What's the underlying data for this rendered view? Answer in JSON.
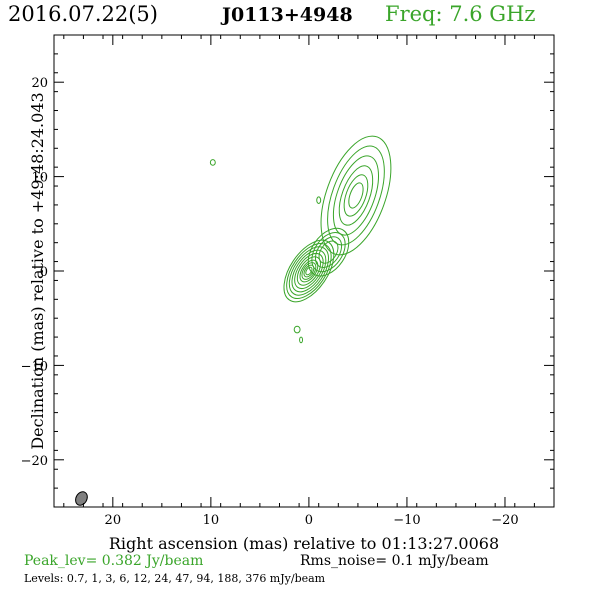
{
  "header": {
    "date": "2016.07.22(5)",
    "source": "J0113+4948",
    "freq": "Freq: 7.6 GHz"
  },
  "footer": {
    "peak": "Peak_lev=  0.382 Jy/beam",
    "rms": "Rms_noise=  0.1 mJy/beam",
    "levels": "Levels: 0.7,   1,   3,   6,  12,  24,  47,  94, 188, 376 mJy/beam"
  },
  "colors": {
    "contour": "#3aa52a",
    "beam": "#808080",
    "axis": "#000000"
  },
  "chart_data": {
    "type": "contour",
    "title": "",
    "xlabel": "Right ascension (mas) relative to 01:13:27.0068",
    "ylabel": "Declination (mas) relative to +49:48:24.043",
    "xlim": [
      26,
      -25
    ],
    "ylim": [
      -25,
      25
    ],
    "xticks": [
      20,
      10,
      0,
      -10,
      -20
    ],
    "xtick_labels": [
      "20",
      "10",
      "0",
      "−10",
      "−20"
    ],
    "yticks": [
      20,
      10,
      0,
      -10,
      -20
    ],
    "ytick_labels": [
      "20",
      "10",
      "0",
      "−10",
      "−20"
    ],
    "levels_mjy": [
      0.7,
      1,
      3,
      6,
      12,
      24,
      47,
      94,
      188,
      376
    ],
    "peak_jy_per_beam": 0.382,
    "rms_mjy_per_beam": 0.1,
    "components": [
      {
        "name": "core",
        "x": 0,
        "y": 0,
        "rx": [
          1.9,
          1.7,
          1.5,
          1.3,
          1.1,
          0.9,
          0.7,
          0.55,
          0.4,
          0.25
        ],
        "ry": [
          3.7,
          3.3,
          2.9,
          2.5,
          2.1,
          1.7,
          1.3,
          1.0,
          0.7,
          0.45
        ],
        "pa_deg": 34,
        "levels_count": 10
      },
      {
        "name": "inner-jet",
        "x": -2.0,
        "y": 2.0,
        "rx": [
          1.7,
          1.4,
          1.1,
          0.8
        ],
        "ry": [
          2.8,
          2.3,
          1.8,
          1.3
        ],
        "pa_deg": 34,
        "levels_count": 4
      },
      {
        "name": "outer-jet",
        "x": -4.8,
        "y": 8.0,
        "rx": [
          3.0,
          2.4,
          1.9,
          1.4,
          1.0,
          0.6
        ],
        "ry": [
          6.6,
          5.5,
          4.4,
          3.3,
          2.3,
          1.4
        ],
        "pa_deg": 20,
        "levels_count": 6
      },
      {
        "name": "blob-1",
        "x": 9.8,
        "y": 11.5,
        "rx": [
          0.25
        ],
        "ry": [
          0.3
        ],
        "pa_deg": 0,
        "levels_count": 1
      },
      {
        "name": "blob-2",
        "x": -1.0,
        "y": 7.5,
        "rx": [
          0.2
        ],
        "ry": [
          0.35
        ],
        "pa_deg": 0,
        "levels_count": 1
      },
      {
        "name": "blob-3",
        "x": 1.2,
        "y": -6.2,
        "rx": [
          0.3
        ],
        "ry": [
          0.35
        ],
        "pa_deg": 0,
        "levels_count": 1
      },
      {
        "name": "blob-4",
        "x": 0.8,
        "y": -7.3,
        "rx": [
          0.15
        ],
        "ry": [
          0.3
        ],
        "pa_deg": 0,
        "levels_count": 1
      }
    ],
    "beam": {
      "x": 23.2,
      "y": -24.1,
      "rx": 0.55,
      "ry": 0.75,
      "pa_deg": 30
    }
  }
}
